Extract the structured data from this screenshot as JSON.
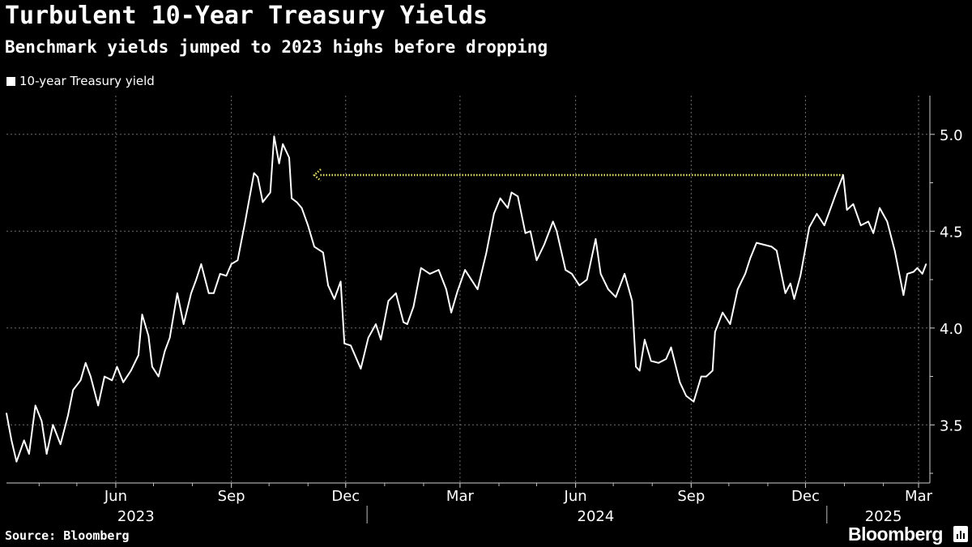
{
  "chart_data": {
    "type": "line",
    "title": "Turbulent 10-Year Treasury Yields",
    "subtitle": "Benchmark yields jumped to 2023 highs before dropping",
    "legend": [
      "10-year Treasury yield"
    ],
    "legend_position": "top-left",
    "y_axis_position": "right",
    "ylim": [
      3.2,
      5.2
    ],
    "yticks": [
      3.5,
      4.0,
      4.5,
      5.0
    ],
    "ytick_labels": [
      "3.5",
      "4.0",
      "4.5",
      "5.0"
    ],
    "xlim": [
      "2023-03-20",
      "2025-03-24"
    ],
    "x_month_labels": [
      {
        "date": "2023-06-15",
        "label": "Jun"
      },
      {
        "date": "2023-09-15",
        "label": "Sep"
      },
      {
        "date": "2023-12-15",
        "label": "Dec"
      },
      {
        "date": "2024-03-15",
        "label": "Mar"
      },
      {
        "date": "2024-06-15",
        "label": "Jun"
      },
      {
        "date": "2024-09-15",
        "label": "Sep"
      },
      {
        "date": "2024-12-15",
        "label": "Dec"
      },
      {
        "date": "2025-03-15",
        "label": "Mar"
      }
    ],
    "x_year_labels": [
      {
        "date": "2023-07-01",
        "label": "2023"
      },
      {
        "date": "2024-07-01",
        "label": "2024"
      },
      {
        "date": "2025-02-15",
        "label": "2025"
      }
    ],
    "grid": true,
    "series": [
      {
        "name": "10-year Treasury yield",
        "color": "#ffffff",
        "points": [
          [
            "2023-03-20",
            3.56
          ],
          [
            "2023-03-24",
            3.42
          ],
          [
            "2023-03-28",
            3.31
          ],
          [
            "2023-04-03",
            3.42
          ],
          [
            "2023-04-07",
            3.35
          ],
          [
            "2023-04-12",
            3.6
          ],
          [
            "2023-04-17",
            3.52
          ],
          [
            "2023-04-21",
            3.35
          ],
          [
            "2023-04-26",
            3.5
          ],
          [
            "2023-05-02",
            3.4
          ],
          [
            "2023-05-08",
            3.55
          ],
          [
            "2023-05-12",
            3.68
          ],
          [
            "2023-05-18",
            3.73
          ],
          [
            "2023-05-22",
            3.82
          ],
          [
            "2023-05-26",
            3.75
          ],
          [
            "2023-06-01",
            3.6
          ],
          [
            "2023-06-06",
            3.75
          ],
          [
            "2023-06-12",
            3.73
          ],
          [
            "2023-06-16",
            3.8
          ],
          [
            "2023-06-21",
            3.72
          ],
          [
            "2023-06-27",
            3.78
          ],
          [
            "2023-07-03",
            3.86
          ],
          [
            "2023-07-06",
            4.07
          ],
          [
            "2023-07-11",
            3.96
          ],
          [
            "2023-07-14",
            3.8
          ],
          [
            "2023-07-19",
            3.75
          ],
          [
            "2023-07-24",
            3.88
          ],
          [
            "2023-07-28",
            3.95
          ],
          [
            "2023-08-03",
            4.18
          ],
          [
            "2023-08-08",
            4.02
          ],
          [
            "2023-08-14",
            4.18
          ],
          [
            "2023-08-18",
            4.25
          ],
          [
            "2023-08-22",
            4.33
          ],
          [
            "2023-08-28",
            4.18
          ],
          [
            "2023-09-01",
            4.18
          ],
          [
            "2023-09-06",
            4.28
          ],
          [
            "2023-09-11",
            4.27
          ],
          [
            "2023-09-15",
            4.33
          ],
          [
            "2023-09-20",
            4.35
          ],
          [
            "2023-09-26",
            4.55
          ],
          [
            "2023-10-03",
            4.8
          ],
          [
            "2023-10-06",
            4.78
          ],
          [
            "2023-10-10",
            4.65
          ],
          [
            "2023-10-16",
            4.7
          ],
          [
            "2023-10-19",
            4.99
          ],
          [
            "2023-10-23",
            4.85
          ],
          [
            "2023-10-26",
            4.95
          ],
          [
            "2023-10-31",
            4.88
          ],
          [
            "2023-11-02",
            4.67
          ],
          [
            "2023-11-06",
            4.65
          ],
          [
            "2023-11-10",
            4.62
          ],
          [
            "2023-11-15",
            4.53
          ],
          [
            "2023-11-20",
            4.42
          ],
          [
            "2023-11-27",
            4.39
          ],
          [
            "2023-12-01",
            4.22
          ],
          [
            "2023-12-06",
            4.15
          ],
          [
            "2023-12-11",
            4.24
          ],
          [
            "2023-12-14",
            3.92
          ],
          [
            "2023-12-19",
            3.91
          ],
          [
            "2023-12-27",
            3.79
          ],
          [
            "2024-01-02",
            3.95
          ],
          [
            "2024-01-08",
            4.02
          ],
          [
            "2024-01-12",
            3.94
          ],
          [
            "2024-01-18",
            4.14
          ],
          [
            "2024-01-24",
            4.18
          ],
          [
            "2024-01-30",
            4.03
          ],
          [
            "2024-02-02",
            4.02
          ],
          [
            "2024-02-07",
            4.11
          ],
          [
            "2024-02-13",
            4.31
          ],
          [
            "2024-02-20",
            4.28
          ],
          [
            "2024-02-27",
            4.3
          ],
          [
            "2024-03-04",
            4.2
          ],
          [
            "2024-03-08",
            4.08
          ],
          [
            "2024-03-13",
            4.19
          ],
          [
            "2024-03-19",
            4.3
          ],
          [
            "2024-03-25",
            4.24
          ],
          [
            "2024-03-29",
            4.2
          ],
          [
            "2024-04-05",
            4.39
          ],
          [
            "2024-04-11",
            4.59
          ],
          [
            "2024-04-16",
            4.67
          ],
          [
            "2024-04-22",
            4.62
          ],
          [
            "2024-04-25",
            4.7
          ],
          [
            "2024-04-30",
            4.68
          ],
          [
            "2024-05-06",
            4.49
          ],
          [
            "2024-05-10",
            4.5
          ],
          [
            "2024-05-15",
            4.35
          ],
          [
            "2024-05-21",
            4.43
          ],
          [
            "2024-05-28",
            4.55
          ],
          [
            "2024-05-31",
            4.5
          ],
          [
            "2024-06-07",
            4.3
          ],
          [
            "2024-06-12",
            4.28
          ],
          [
            "2024-06-18",
            4.22
          ],
          [
            "2024-06-24",
            4.25
          ],
          [
            "2024-07-01",
            4.46
          ],
          [
            "2024-07-05",
            4.28
          ],
          [
            "2024-07-11",
            4.2
          ],
          [
            "2024-07-17",
            4.16
          ],
          [
            "2024-07-24",
            4.28
          ],
          [
            "2024-07-30",
            4.14
          ],
          [
            "2024-08-02",
            3.8
          ],
          [
            "2024-08-05",
            3.78
          ],
          [
            "2024-08-09",
            3.94
          ],
          [
            "2024-08-14",
            3.83
          ],
          [
            "2024-08-20",
            3.82
          ],
          [
            "2024-08-26",
            3.84
          ],
          [
            "2024-08-30",
            3.9
          ],
          [
            "2024-09-06",
            3.72
          ],
          [
            "2024-09-11",
            3.65
          ],
          [
            "2024-09-17",
            3.62
          ],
          [
            "2024-09-23",
            3.75
          ],
          [
            "2024-09-27",
            3.75
          ],
          [
            "2024-10-02",
            3.78
          ],
          [
            "2024-10-04",
            3.98
          ],
          [
            "2024-10-10",
            4.08
          ],
          [
            "2024-10-16",
            4.02
          ],
          [
            "2024-10-22",
            4.2
          ],
          [
            "2024-10-28",
            4.28
          ],
          [
            "2024-11-01",
            4.36
          ],
          [
            "2024-11-06",
            4.44
          ],
          [
            "2024-11-12",
            4.43
          ],
          [
            "2024-11-18",
            4.42
          ],
          [
            "2024-11-22",
            4.4
          ],
          [
            "2024-11-29",
            4.18
          ],
          [
            "2024-12-03",
            4.23
          ],
          [
            "2024-12-06",
            4.15
          ],
          [
            "2024-12-11",
            4.27
          ],
          [
            "2024-12-18",
            4.52
          ],
          [
            "2024-12-24",
            4.59
          ],
          [
            "2024-12-30",
            4.53
          ],
          [
            "2025-01-03",
            4.6
          ],
          [
            "2025-01-08",
            4.69
          ],
          [
            "2025-01-14",
            4.79
          ],
          [
            "2025-01-17",
            4.61
          ],
          [
            "2025-01-22",
            4.64
          ],
          [
            "2025-01-28",
            4.53
          ],
          [
            "2025-02-03",
            4.55
          ],
          [
            "2025-02-07",
            4.49
          ],
          [
            "2025-02-12",
            4.62
          ],
          [
            "2025-02-18",
            4.55
          ],
          [
            "2025-02-24",
            4.4
          ],
          [
            "2025-03-03",
            4.17
          ],
          [
            "2025-03-06",
            4.28
          ],
          [
            "2025-03-11",
            4.29
          ],
          [
            "2025-03-14",
            4.31
          ],
          [
            "2025-03-18",
            4.28
          ],
          [
            "2025-03-21",
            4.33
          ]
        ]
      }
    ],
    "annotations": [
      {
        "type": "arrow",
        "style": "dotted",
        "color": "#e8e06a",
        "from": [
          "2025-01-14",
          4.79
        ],
        "to": [
          "2023-11-20",
          4.79
        ]
      }
    ]
  },
  "footer": {
    "source": "Source: Bloomberg",
    "brand": "Bloomberg"
  }
}
